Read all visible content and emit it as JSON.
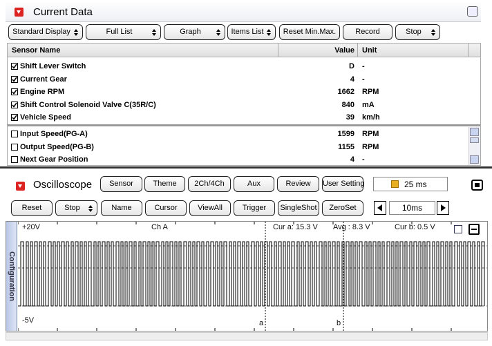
{
  "current_data": {
    "title": "Current Data",
    "toolbar": [
      "Standard Display",
      "Full List",
      "Graph",
      "Items List",
      "Reset Min.Max.",
      "Record",
      "Stop"
    ],
    "table": {
      "columns": [
        "Sensor Name",
        "Value",
        "Unit"
      ],
      "rows": [
        {
          "name": "Shift Lever Switch",
          "value": "D",
          "unit": "-",
          "checked": true
        },
        {
          "name": "Current Gear",
          "value": 4,
          "unit": "-",
          "checked": true
        },
        {
          "name": "Engine RPM",
          "value": 1662,
          "unit": "RPM",
          "checked": true
        },
        {
          "name": "Shift Control Solenoid Valve C(35R/C)",
          "value": 840,
          "unit": "mA",
          "checked": true
        },
        {
          "name": "Vehicle Speed",
          "value": 39,
          "unit": "km/h",
          "checked": true
        },
        {
          "name": "Input Speed(PG-A)",
          "value": 1599,
          "unit": "RPM",
          "checked": false
        },
        {
          "name": "Output Speed(PG-B)",
          "value": 1155,
          "unit": "RPM",
          "checked": false
        },
        {
          "name": "Next Gear Position",
          "value": 4,
          "unit": "-",
          "checked": false
        }
      ]
    }
  },
  "oscilloscope": {
    "title": "Oscilloscope",
    "buttons_row1": [
      "Sensor",
      "Theme",
      "2Ch/4Ch",
      "Aux",
      "Review",
      "User Setting"
    ],
    "time_div": "25 ms",
    "buttons_row2": [
      "Reset",
      "Stop",
      "Name",
      "Cursor",
      "ViewAll",
      "Trigger",
      "SingleShot",
      "ZeroSet"
    ],
    "time_scale": "10ms",
    "side_tab": "Configuration",
    "y_max": "+20V",
    "y_min": "-5V",
    "channel": "Ch A",
    "cursor_a": "Cur a: 15.3 V",
    "average": "Avg : 8.3 V",
    "cursor_b": "Cur b: 0.5 V",
    "cursor_a_label": "a",
    "cursor_b_label": "b"
  }
}
